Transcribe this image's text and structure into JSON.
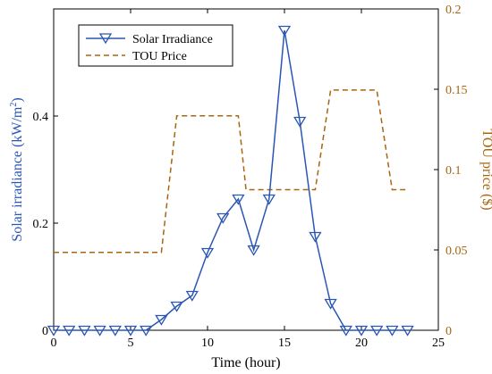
{
  "chart_data": {
    "type": "line",
    "x": [
      0,
      1,
      2,
      3,
      4,
      5,
      6,
      7,
      8,
      9,
      10,
      11,
      12,
      13,
      14,
      15,
      16,
      17,
      18,
      19,
      20,
      21,
      22,
      23
    ],
    "xlabel": "Time (hour)",
    "xlim": [
      0,
      25
    ],
    "xticks": [
      0,
      5,
      10,
      15,
      20,
      25
    ],
    "ylabel_left": {
      "main": "Solar irradiance (kW/m",
      "sup": "2",
      "close": ")"
    },
    "ylim_left": [
      0,
      0.6
    ],
    "yticks_left": [
      0,
      0.2,
      0.4
    ],
    "ylabel_right": "TOU price ($)",
    "ylim_right": [
      0,
      0.2
    ],
    "yticks_right": [
      0,
      0.05,
      0.1,
      0.15,
      0.2
    ],
    "grid": false,
    "legend_position": "top-left",
    "series": [
      {
        "name": "Solar Irradiance",
        "axis": "left",
        "style": "solid-triangle-markers",
        "color": "#2a56b4",
        "x": [
          0,
          1,
          2,
          3,
          4,
          5,
          6,
          7,
          8,
          9,
          10,
          11,
          12,
          13,
          14,
          15,
          16,
          17,
          18,
          19,
          20,
          21,
          22,
          23
        ],
        "values": [
          0,
          0,
          0,
          0,
          0,
          0,
          0,
          0.02,
          0.045,
          0.065,
          0.145,
          0.21,
          0.245,
          0.15,
          0.245,
          0.56,
          0.39,
          0.175,
          0.05,
          0,
          0,
          0,
          0,
          0
        ]
      },
      {
        "name": "TOU Price",
        "axis": "right",
        "style": "dashed",
        "color": "#a8660f",
        "x": [
          0,
          7,
          8,
          12,
          12.5,
          17,
          18,
          21,
          22,
          23
        ],
        "values": [
          0.0485,
          0.0485,
          0.1335,
          0.1335,
          0.0875,
          0.0875,
          0.1495,
          0.1495,
          0.0875,
          0.0875
        ]
      }
    ]
  },
  "colors": {
    "left_axis_label": "#2a56b4",
    "right_axis": "#a8660f",
    "axis": "#000000"
  }
}
